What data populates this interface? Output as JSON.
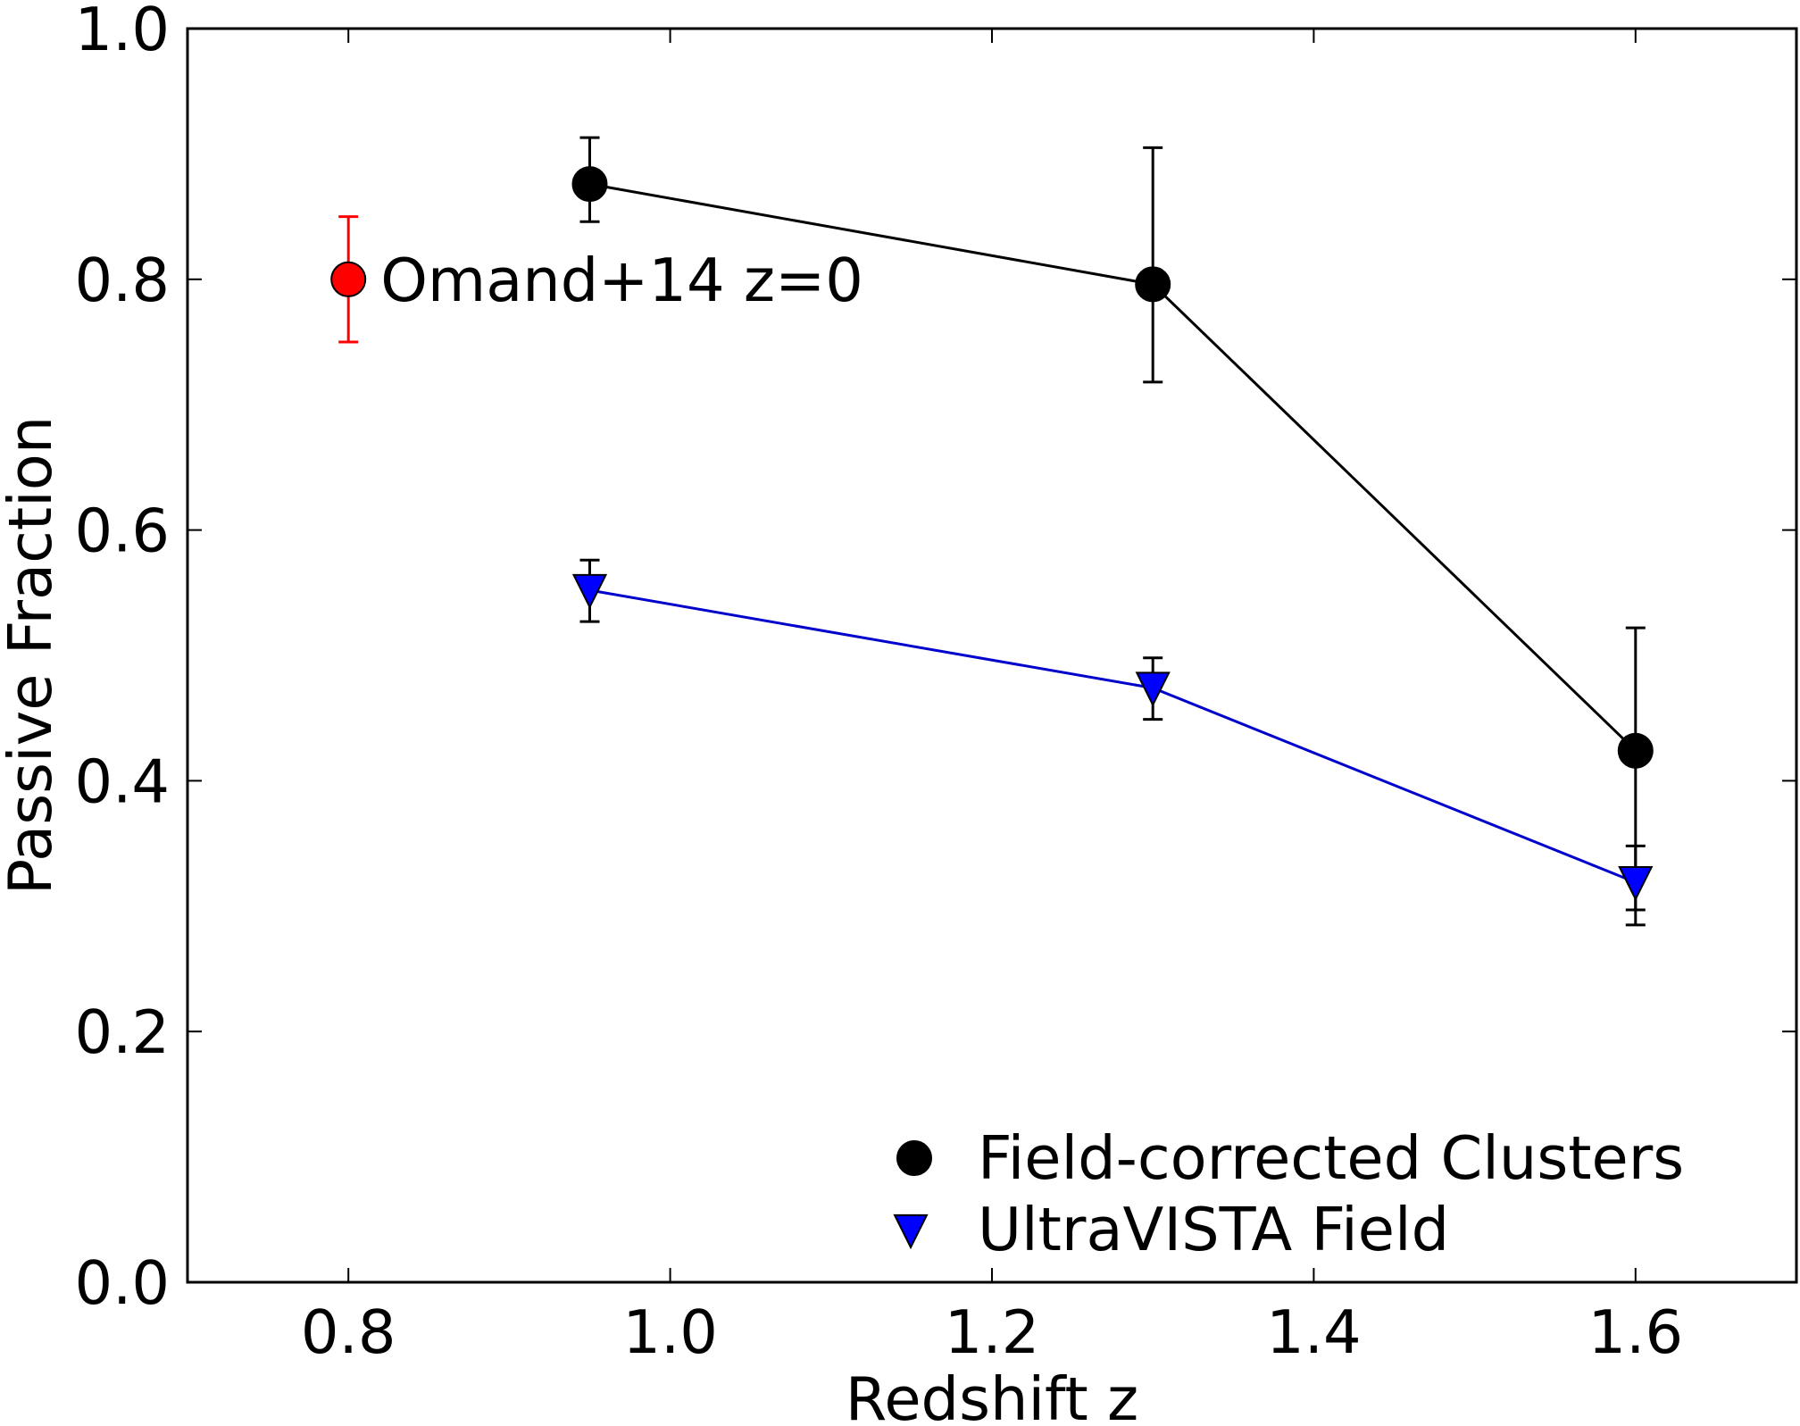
{
  "chart_data": {
    "type": "scatter",
    "xlabel": "Redshift z",
    "ylabel": "Passive Fraction",
    "xlim": [
      0.7,
      1.7
    ],
    "ylim": [
      0.0,
      1.0
    ],
    "x_ticks": [
      "0.8",
      "1.0",
      "1.2",
      "1.4",
      "1.6"
    ],
    "y_ticks": [
      "0.0",
      "0.2",
      "0.4",
      "0.6",
      "0.8",
      "1.0"
    ],
    "grid": false,
    "legend_position": "bottom-right",
    "series": [
      {
        "name": "Field-corrected Clusters",
        "marker": "circle",
        "color": "#000000",
        "line_color": "#000000",
        "connected": true,
        "points": [
          {
            "x": 0.95,
            "y": 0.876,
            "err_low": 0.846,
            "err_high": 0.913
          },
          {
            "x": 1.3,
            "y": 0.796,
            "err_low": 0.718,
            "err_high": 0.905
          },
          {
            "x": 1.6,
            "y": 0.424,
            "err_low": 0.297,
            "err_high": 0.522
          }
        ]
      },
      {
        "name": "UltraVISTA Field",
        "marker": "triangle-down",
        "color": "#0000ff",
        "line_color": "#0000cc",
        "connected": true,
        "points": [
          {
            "x": 0.95,
            "y": 0.552,
            "err_low": 0.527,
            "err_high": 0.576
          },
          {
            "x": 1.3,
            "y": 0.474,
            "err_low": 0.449,
            "err_high": 0.498
          },
          {
            "x": 1.6,
            "y": 0.319,
            "err_low": 0.285,
            "err_high": 0.348
          }
        ]
      }
    ],
    "annotations": [
      {
        "text": "Omand+14 z=0",
        "marker": "circle",
        "color": "#ff0000",
        "x": 0.8,
        "y": 0.8,
        "err_low": 0.75,
        "err_high": 0.85
      }
    ]
  }
}
